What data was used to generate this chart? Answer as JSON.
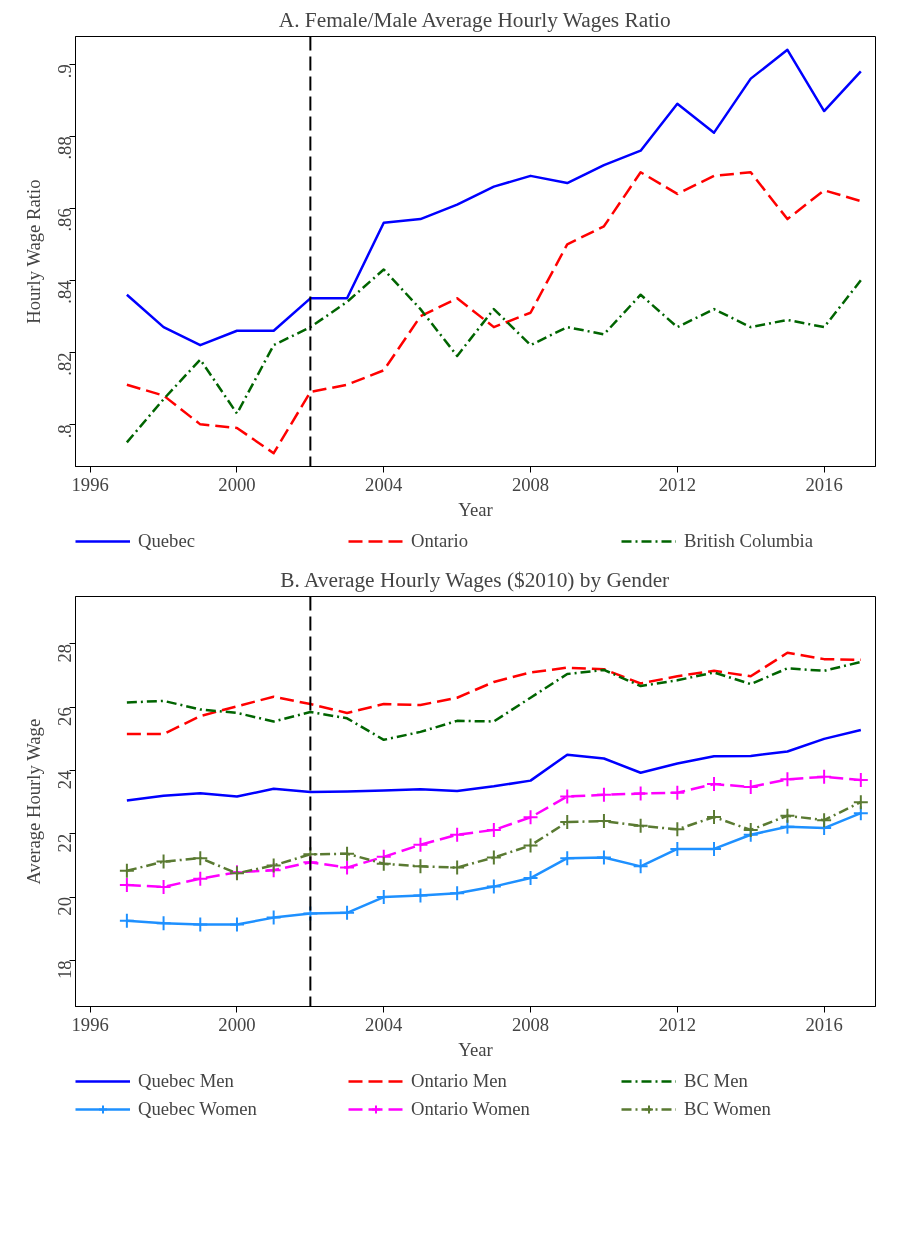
{
  "chart_data": [
    {
      "type": "line",
      "title": "A. Female/Male Average Hourly Wages Ratio",
      "xlabel": "Year",
      "ylabel": "Hourly Wage Ratio",
      "x": [
        1997,
        1998,
        1999,
        2000,
        2001,
        2002,
        2003,
        2004,
        2005,
        2006,
        2007,
        2008,
        2009,
        2010,
        2011,
        2012,
        2013,
        2014,
        2015,
        2016,
        2017
      ],
      "xlim": [
        1995.6,
        2017.4
      ],
      "xticks": [
        1996,
        2000,
        2004,
        2008,
        2012,
        2016
      ],
      "ylim": [
        0.7883,
        0.9077
      ],
      "yticks": [
        {
          "value": 0.8,
          "label": ".8"
        },
        {
          "value": 0.82,
          "label": ".82"
        },
        {
          "value": 0.84,
          "label": ".84"
        },
        {
          "value": 0.86,
          "label": ".86"
        },
        {
          "value": 0.88,
          "label": ".88"
        },
        {
          "value": 0.9,
          "label": ".9"
        }
      ],
      "grid": false,
      "legend": "bottom",
      "ref_lines": [
        {
          "axis": "x",
          "value": 2002,
          "color": "#000000",
          "line_style": "dashed"
        }
      ],
      "series": [
        {
          "name": "Quebec",
          "color": "#0000ff",
          "line_style": "solid",
          "marker": "none",
          "values": [
            0.836,
            0.827,
            0.822,
            0.826,
            0.826,
            0.835,
            0.835,
            0.856,
            0.857,
            0.861,
            0.866,
            0.869,
            0.867,
            0.872,
            0.876,
            0.889,
            0.881,
            0.896,
            0.904,
            0.887,
            0.898
          ]
        },
        {
          "name": "Ontario",
          "color": "#ff0000",
          "line_style": "dashed",
          "marker": "none",
          "values": [
            0.811,
            0.808,
            0.8,
            0.799,
            0.792,
            0.809,
            0.811,
            0.815,
            0.83,
            0.835,
            0.827,
            0.831,
            0.85,
            0.855,
            0.87,
            0.864,
            0.869,
            0.87,
            0.857,
            0.865,
            0.862
          ]
        },
        {
          "name": "British Columbia",
          "color": "#006400",
          "line_style": "dashdot",
          "marker": "none",
          "values": [
            0.795,
            0.807,
            0.818,
            0.803,
            0.822,
            0.827,
            0.834,
            0.843,
            0.832,
            0.819,
            0.832,
            0.822,
            0.827,
            0.825,
            0.836,
            0.827,
            0.832,
            0.827,
            0.829,
            0.827,
            0.84
          ]
        }
      ]
    },
    {
      "type": "line",
      "title": "B. Average Hourly Wages ($2010) by Gender",
      "xlabel": "Year",
      "ylabel": "Average Hourly Wage",
      "x": [
        1997,
        1998,
        1999,
        2000,
        2001,
        2002,
        2003,
        2004,
        2005,
        2006,
        2007,
        2008,
        2009,
        2010,
        2011,
        2012,
        2013,
        2014,
        2015,
        2016,
        2017
      ],
      "xlim": [
        1995.6,
        2017.4
      ],
      "xticks": [
        1996,
        2000,
        2004,
        2008,
        2012,
        2016
      ],
      "ylim": [
        16.54,
        29.5
      ],
      "yticks": [
        18,
        20,
        22,
        24,
        26,
        28
      ],
      "grid": false,
      "legend": "bottom",
      "ref_lines": [
        {
          "axis": "x",
          "value": 2002,
          "color": "#000000",
          "line_style": "dashed"
        }
      ],
      "series": [
        {
          "name": "Quebec Men",
          "color": "#0000ff",
          "line_style": "solid",
          "marker": "none",
          "values": [
            23.05,
            23.2,
            23.28,
            23.18,
            23.42,
            23.32,
            23.34,
            23.37,
            23.41,
            23.35,
            23.5,
            23.68,
            24.5,
            24.38,
            23.93,
            24.22,
            24.45,
            24.46,
            24.6,
            25.0,
            25.28
          ]
        },
        {
          "name": "Ontario Men",
          "color": "#ff0000",
          "line_style": "dashed",
          "marker": "none",
          "values": [
            25.15,
            25.15,
            25.72,
            26.03,
            26.33,
            26.1,
            25.82,
            26.1,
            26.07,
            26.3,
            26.8,
            27.1,
            27.25,
            27.2,
            26.75,
            26.98,
            27.15,
            26.98,
            27.72,
            27.52,
            27.5
          ]
        },
        {
          "name": "BC Men",
          "color": "#006400",
          "line_style": "dashdot",
          "marker": "none",
          "values": [
            26.15,
            26.2,
            25.93,
            25.82,
            25.55,
            25.85,
            25.65,
            24.97,
            25.22,
            25.57,
            25.55,
            26.3,
            27.05,
            27.18,
            26.67,
            26.85,
            27.1,
            26.73,
            27.23,
            27.15,
            27.43
          ]
        },
        {
          "name": "Quebec Women",
          "color": "#1e90ff",
          "line_style": "solid",
          "marker": "cross",
          "values": [
            19.25,
            19.17,
            19.13,
            19.13,
            19.35,
            19.48,
            19.5,
            20.0,
            20.05,
            20.12,
            20.33,
            20.6,
            21.23,
            21.25,
            20.97,
            21.52,
            21.52,
            21.97,
            22.22,
            22.18,
            22.65
          ]
        },
        {
          "name": "Ontario Women",
          "color": "#ff00ff",
          "line_style": "dashed",
          "marker": "cross",
          "values": [
            20.38,
            20.32,
            20.58,
            20.78,
            20.85,
            21.1,
            20.93,
            21.27,
            21.65,
            21.97,
            22.12,
            22.52,
            23.18,
            23.23,
            23.27,
            23.3,
            23.57,
            23.48,
            23.72,
            23.8,
            23.7
          ]
        },
        {
          "name": "BC Women",
          "color": "#5a7a32",
          "line_style": "dashdot",
          "marker": "cross",
          "values": [
            20.83,
            21.12,
            21.23,
            20.75,
            21.0,
            21.35,
            21.37,
            21.05,
            20.97,
            20.93,
            21.25,
            21.63,
            22.37,
            22.4,
            22.25,
            22.14,
            22.53,
            22.12,
            22.57,
            22.43,
            23.0
          ]
        }
      ]
    }
  ]
}
